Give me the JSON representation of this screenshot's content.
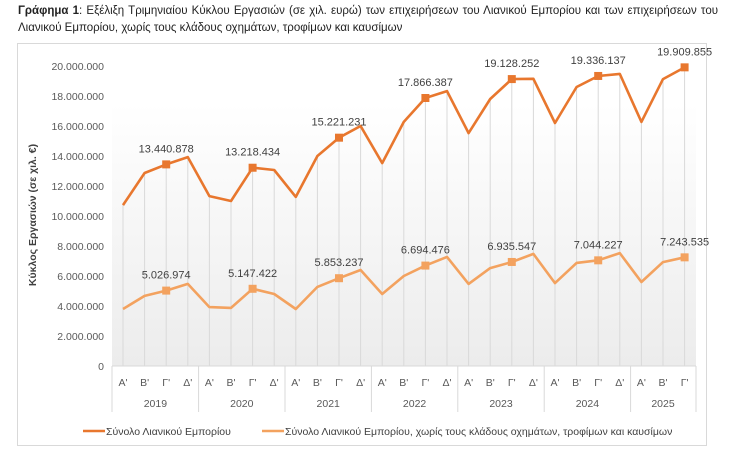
{
  "caption": {
    "bold": "Γράφημα 1",
    "text": ": Εξέλιξη Τριμηνιαίου Κύκλου Εργασιών (σε χιλ. ευρώ) των επιχειρήσεων του Λιανικού Εμπορίου και των επιχειρήσεων του Λιανικού Εμπορίου, χωρίς τους κλάδους οχημάτων, τροφίμων και καυσίμων"
  },
  "chart_data": {
    "type": "line",
    "title": "Γράφημα 1: Εξέλιξη Τριμηνιαίου Κύκλου Εργασιών (σε χιλ. ευρώ) των επιχειρήσεων του Λιανικού Εμπορίου και των επιχειρήσεων του Λιανικού Εμπορίου, χωρίς τους κλάδους οχημάτων, τροφίμων και καυσίμων",
    "xlabel": "",
    "ylabel": "Κύκλος Εργασιών (σε χιλ. €)",
    "ylim": [
      0,
      20000000
    ],
    "yticks": [
      0,
      2000000,
      4000000,
      6000000,
      8000000,
      10000000,
      12000000,
      14000000,
      16000000,
      18000000,
      20000000
    ],
    "ytick_labels": [
      "0",
      "2.000.000",
      "4.000.000",
      "6.000.000",
      "8.000.000",
      "10.000.000",
      "12.000.000",
      "14.000.000",
      "16.000.000",
      "18.000.000",
      "20.000.000"
    ],
    "grid": "vertical",
    "legend": "bottom",
    "years": [
      {
        "label": "2019",
        "quarters": 4
      },
      {
        "label": "2020",
        "quarters": 4
      },
      {
        "label": "2021",
        "quarters": 4
      },
      {
        "label": "2022",
        "quarters": 4
      },
      {
        "label": "2023",
        "quarters": 4
      },
      {
        "label": "2024",
        "quarters": 4
      },
      {
        "label": "2025",
        "quarters": 3
      }
    ],
    "categories": [
      "Α'",
      "Β'",
      "Γ'",
      "Δ'",
      "Α'",
      "Β'",
      "Γ'",
      "Δ'",
      "Α'",
      "Β'",
      "Γ'",
      "Δ'",
      "Α'",
      "Β'",
      "Γ'",
      "Δ'",
      "Α'",
      "Β'",
      "Γ'",
      "Δ'",
      "Α'",
      "Β'",
      "Γ'",
      "Δ'",
      "Α'",
      "Β'",
      "Γ'"
    ],
    "series": [
      {
        "name": "Σύνολο Λιανικού Εμπορίου",
        "color": "#E8772E",
        "values": [
          10730000,
          12870000,
          13440878,
          13930000,
          11330000,
          11000000,
          13218434,
          13070000,
          11270000,
          14000000,
          15221231,
          16000000,
          13530000,
          16270000,
          17866387,
          18330000,
          15530000,
          17800000,
          19128252,
          19150000,
          16200000,
          18600000,
          19336137,
          19470000,
          16270000,
          19130000,
          19909855
        ],
        "labeled_indices": [
          2,
          6,
          10,
          14,
          18,
          22,
          26
        ],
        "labels": [
          "13.440.878",
          "13.218.434",
          "15.221.231",
          "17.866.387",
          "19.128.252",
          "19.336.137",
          "19.909.855"
        ]
      },
      {
        "name": "Σύνολο Λιανικού Εμπορίου, χωρίς τους κλάδους οχημάτων, τροφίμων και καυσίμων",
        "color": "#F3A25F",
        "values": [
          3800000,
          4670000,
          5026974,
          5470000,
          3930000,
          3870000,
          5147422,
          4800000,
          3800000,
          5270000,
          5853237,
          6400000,
          4800000,
          6000000,
          6694476,
          7270000,
          5470000,
          6530000,
          6935547,
          7470000,
          5530000,
          6870000,
          7044227,
          7530000,
          5600000,
          6930000,
          7243535
        ],
        "labeled_indices": [
          2,
          6,
          10,
          14,
          18,
          22,
          26
        ],
        "labels": [
          "5.026.974",
          "5.147.422",
          "5.853.237",
          "6.694.476",
          "6.935.547",
          "7.044.227",
          "7.243.535"
        ]
      }
    ]
  }
}
